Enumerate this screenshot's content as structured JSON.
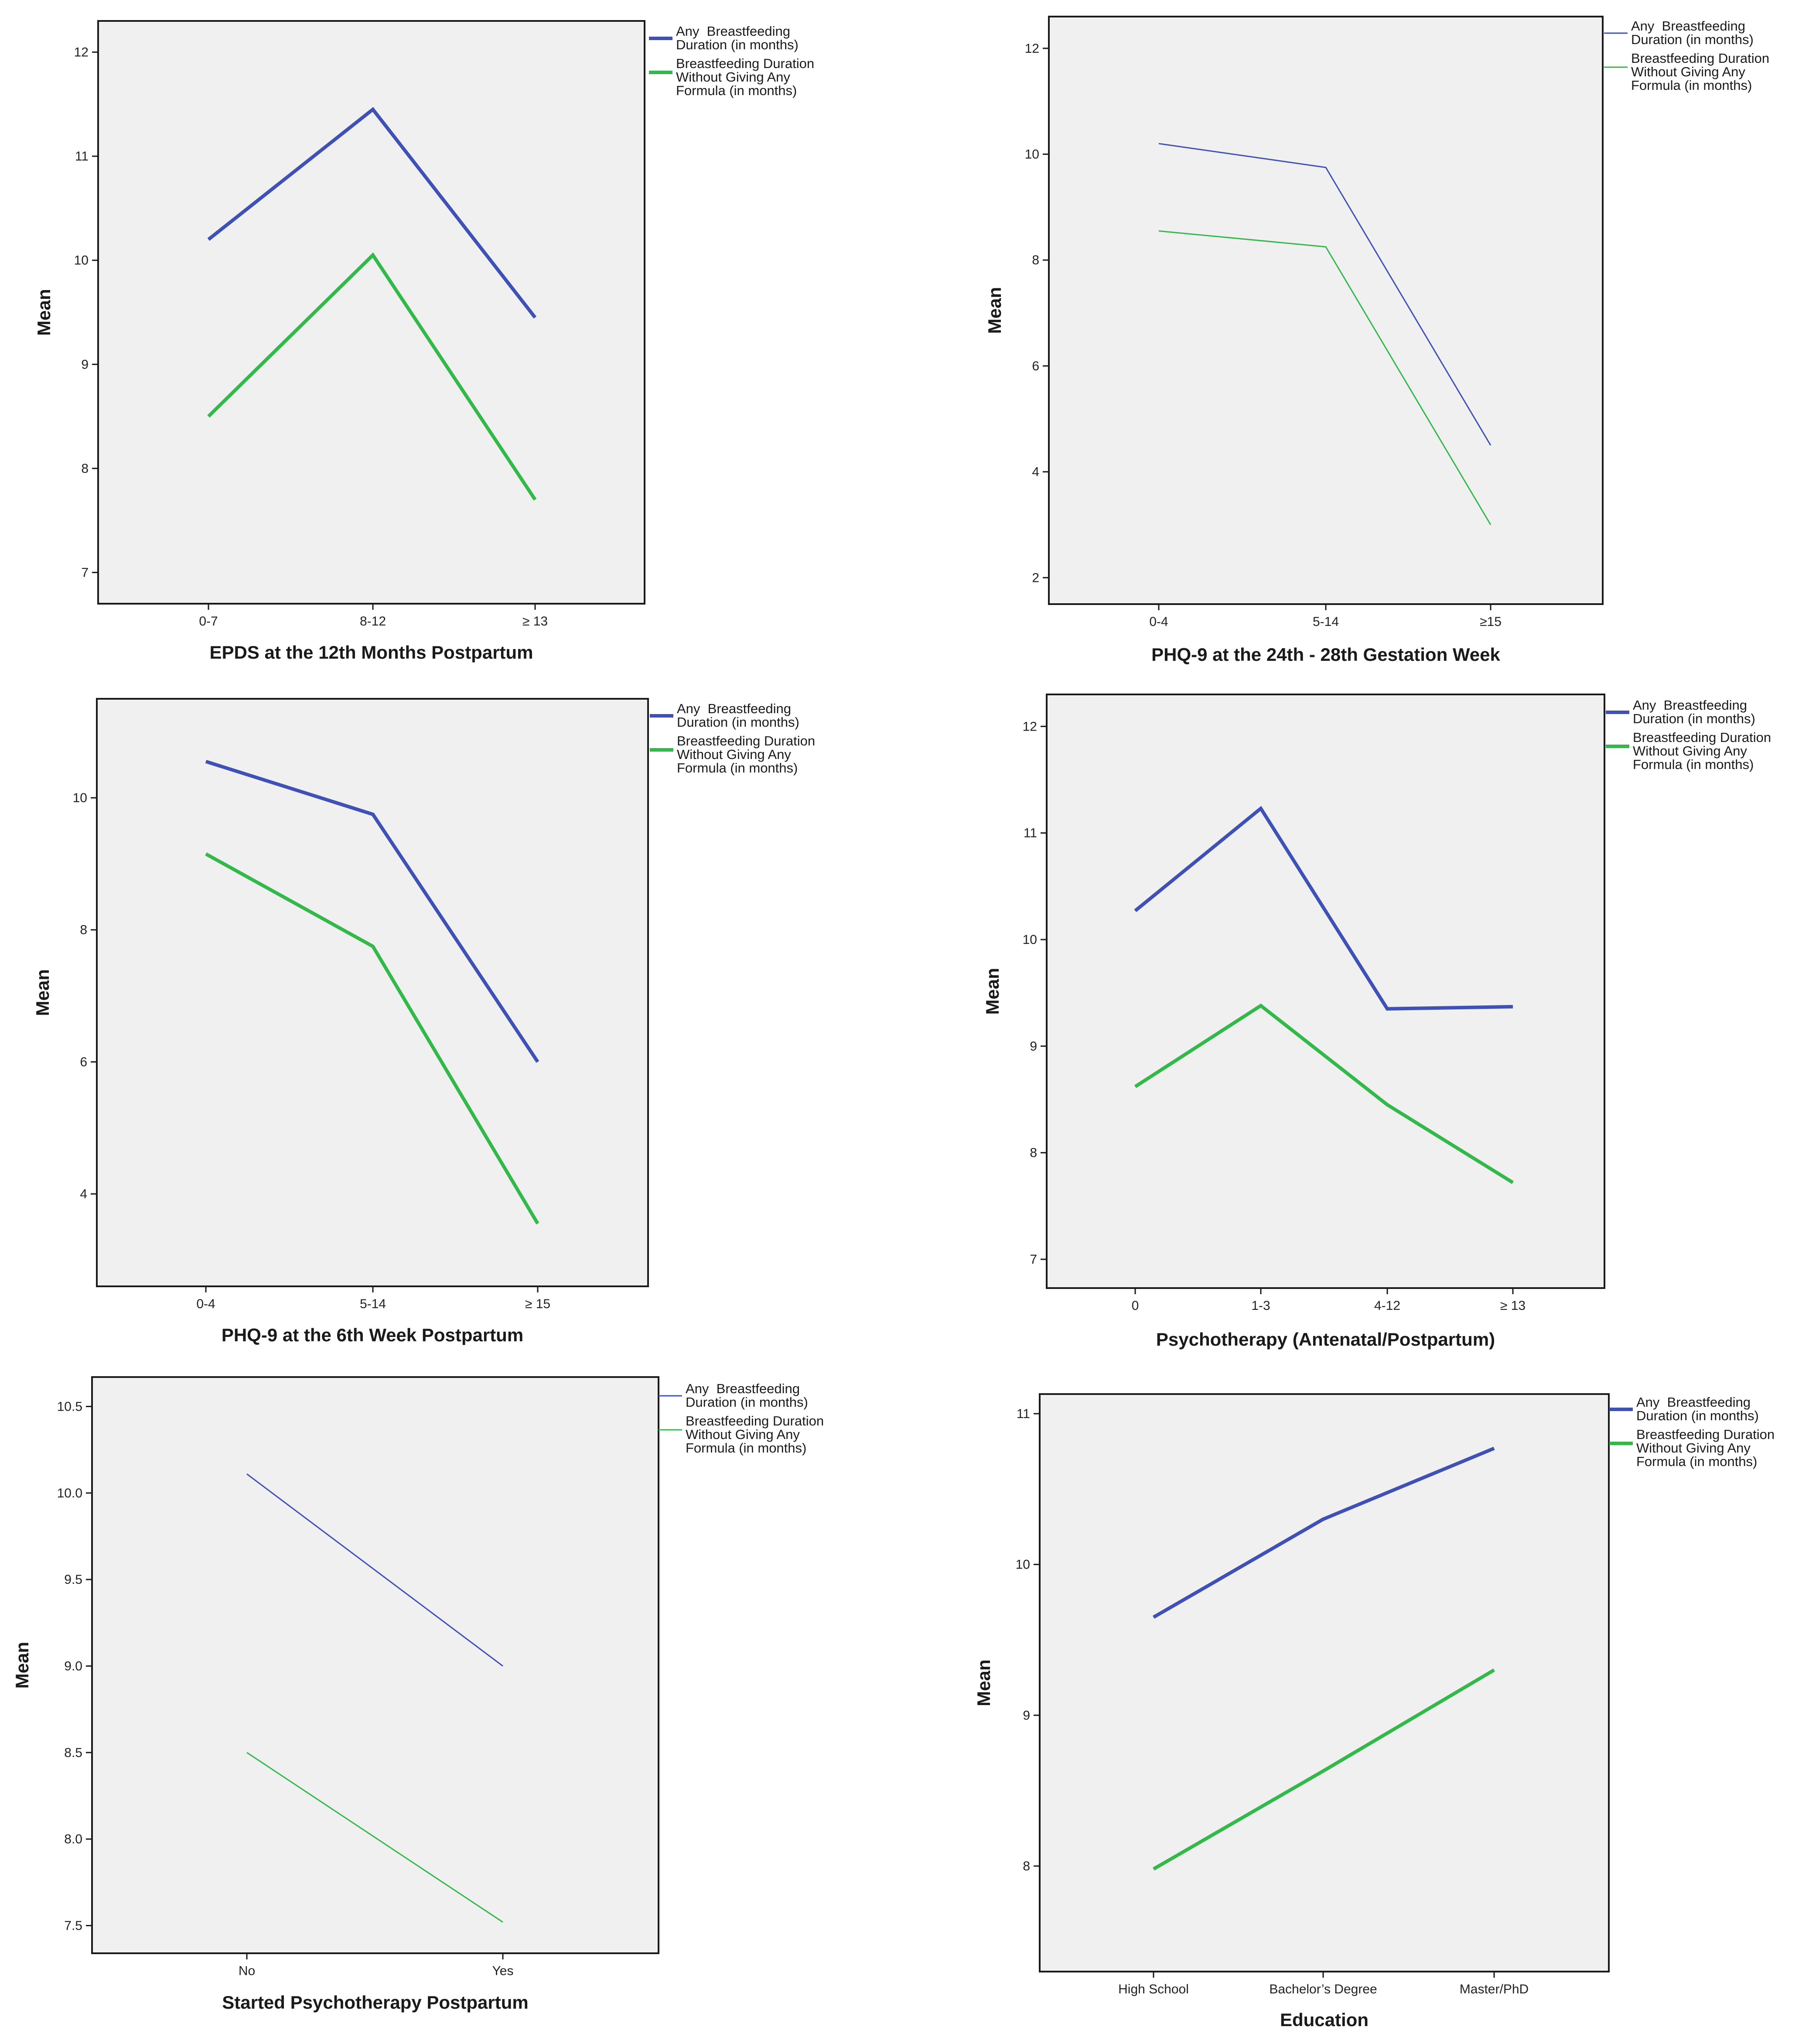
{
  "colors": {
    "series_blue": "#3f51b5",
    "series_green": "#33b84a",
    "plot_bg": "#f0f0f0"
  },
  "legend_labels": [
    [
      "Any  Breastfeeding",
      "Duration (in months)"
    ],
    [
      "Breastfeeding Duration",
      "Without Giving Any",
      "Formula (in months)"
    ]
  ],
  "chart_data": [
    {
      "type": "line",
      "title": "",
      "xlabel": "EPDS at the 12th Months Postpartum",
      "ylabel": "Mean",
      "categories": [
        "0-7",
        "8-12",
        "≥ 13"
      ],
      "ylim": [
        6.7,
        12.3
      ],
      "yticks": [
        7,
        8,
        9,
        10,
        11,
        12
      ],
      "ytick_labels": [
        "7",
        "8",
        "9",
        "10",
        "11",
        "12"
      ],
      "line_style": "thick",
      "series": [
        {
          "name": "Any Breastfeeding Duration (in months)",
          "values": [
            10.2,
            11.45,
            9.45
          ]
        },
        {
          "name": "Breastfeeding Duration Without Giving Any Formula (in months)",
          "values": [
            8.5,
            10.05,
            7.7
          ]
        }
      ]
    },
    {
      "type": "line",
      "title": "",
      "xlabel": "PHQ-9 at the 24th - 28th Gestation Week",
      "ylabel": "Mean",
      "categories": [
        "0-4",
        "5-14",
        "≥15"
      ],
      "ylim": [
        1.5,
        12.6
      ],
      "yticks": [
        2,
        4,
        6,
        8,
        10,
        12
      ],
      "ytick_labels": [
        "2",
        "4",
        "6",
        "8",
        "10",
        "12"
      ],
      "line_style": "thin",
      "series": [
        {
          "name": "Any Breastfeeding Duration (in months)",
          "values": [
            10.2,
            9.75,
            4.5
          ]
        },
        {
          "name": "Breastfeeding Duration Without Giving Any Formula (in months)",
          "values": [
            8.55,
            8.25,
            3.0
          ]
        }
      ]
    },
    {
      "type": "line",
      "title": "",
      "xlabel": "PHQ-9 at the 6th Week Postpartum",
      "ylabel": "Mean",
      "categories": [
        "0-4",
        "5-14",
        "≥ 15"
      ],
      "ylim": [
        2.6,
        11.5
      ],
      "yticks": [
        4,
        6,
        8,
        10
      ],
      "ytick_labels": [
        "4",
        "6",
        "8",
        "10"
      ],
      "line_style": "thick",
      "series": [
        {
          "name": "Any Breastfeeding Duration (in months)",
          "values": [
            10.55,
            9.75,
            6.0
          ]
        },
        {
          "name": "Breastfeeding Duration Without Giving Any Formula (in months)",
          "values": [
            9.15,
            7.75,
            3.55
          ]
        }
      ]
    },
    {
      "type": "line",
      "title": "",
      "xlabel": "Psychotherapy (Antenatal/Postpartum)",
      "ylabel": "Mean",
      "categories": [
        "0",
        "1-3",
        "4-12",
        "≥ 13"
      ],
      "ylim": [
        6.73,
        12.3
      ],
      "yticks": [
        7,
        8,
        9,
        10,
        11,
        12
      ],
      "ytick_labels": [
        "7",
        "8",
        "9",
        "10",
        "11",
        "12"
      ],
      "line_style": "thick",
      "series": [
        {
          "name": "Any Breastfeeding Duration (in months)",
          "values": [
            10.27,
            11.23,
            9.35,
            9.37
          ]
        },
        {
          "name": "Breastfeeding Duration Without Giving Any Formula (in months)",
          "values": [
            8.62,
            9.38,
            8.45,
            7.72
          ]
        }
      ]
    },
    {
      "type": "line",
      "title": "",
      "xlabel": "Started Psychotherapy Postpartum",
      "ylabel": "Mean",
      "categories": [
        "No",
        "Yes"
      ],
      "ylim": [
        7.34,
        10.67
      ],
      "yticks": [
        7.5,
        8.0,
        8.5,
        9.0,
        9.5,
        10.0,
        10.5
      ],
      "ytick_labels": [
        "7.5",
        "8.0",
        "8.5",
        "9.0",
        "9.5",
        "10.0",
        "10.5"
      ],
      "line_style": "thin",
      "series": [
        {
          "name": "Any Breastfeeding Duration (in months)",
          "values": [
            10.11,
            9.0
          ]
        },
        {
          "name": "Breastfeeding Duration Without Giving Any Formula (in months)",
          "values": [
            8.5,
            7.52
          ]
        }
      ]
    },
    {
      "type": "line",
      "title": "",
      "xlabel": "Education",
      "ylabel": "Mean",
      "categories": [
        "High School",
        "Bachelor’s Degree",
        "Master/PhD"
      ],
      "ylim": [
        7.3,
        11.13
      ],
      "yticks": [
        8,
        9,
        10,
        11
      ],
      "ytick_labels": [
        "8",
        "9",
        "10",
        "11"
      ],
      "line_style": "thick",
      "series": [
        {
          "name": "Any Breastfeeding Duration (in months)",
          "values": [
            9.65,
            10.3,
            10.77
          ]
        },
        {
          "name": "Breastfeeding Duration Without Giving Any Formula (in months)",
          "values": [
            7.98,
            8.63,
            9.3
          ]
        }
      ]
    }
  ]
}
